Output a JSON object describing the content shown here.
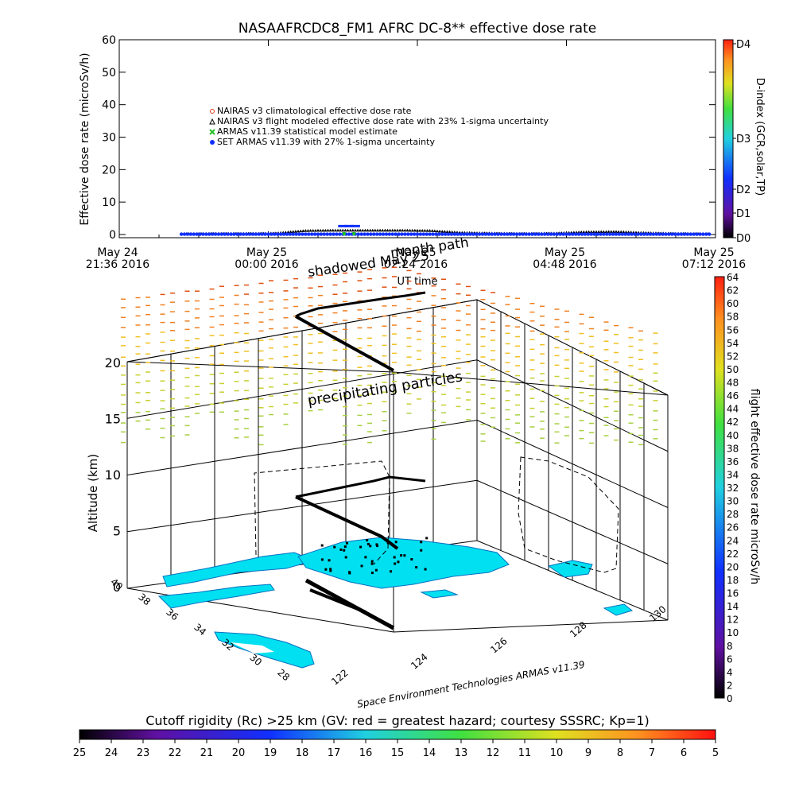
{
  "chart_data": [
    {
      "type": "line",
      "title": "NASAAFRCDC8_FM1 AFRC DC-8** effective dose rate",
      "ylabel": "Effective dose rate (microSv/h)",
      "xlabel": "UT time",
      "ylim": [
        0,
        60
      ],
      "y_ticks": [
        "0",
        "10",
        "20",
        "30",
        "40",
        "50",
        "60"
      ],
      "x_ticks": [
        {
          "line1": "May 24",
          "line2": "21:36 2016"
        },
        {
          "line1": "May 25",
          "line2": "00:00 2016"
        },
        {
          "line1": "May 25",
          "line2": "02:24 2016"
        },
        {
          "line1": "May 25",
          "line2": "04:48 2016"
        },
        {
          "line1": "May 25",
          "line2": "07:12 2016"
        }
      ],
      "legend": [
        {
          "label": "NAIRAS v3 climatological effective dose rate",
          "color": "#e04020"
        },
        {
          "label": "NAIRAS v3 flight modeled effective dose rate with 23% 1-sigma uncertainty",
          "color": "#000000"
        },
        {
          "label": "ARMAS v11.39 statistical model estimate",
          "color": "#20c020"
        },
        {
          "label": "SET ARMAS v11.39 with 27% 1-sigma uncertainty",
          "color": "#1030ff"
        }
      ],
      "series": [
        {
          "name": "NAIRAS v3 flight modeled effective dose rate with 23% 1-sigma uncertainty",
          "x_hours": [
            1.0,
            1.5,
            2.0,
            2.5,
            3.0,
            3.5,
            4.0,
            4.5,
            5.0,
            5.5,
            6.0,
            6.5,
            7.0,
            7.5,
            8.0,
            8.5,
            9.0,
            9.5
          ],
          "values": [
            0.2,
            0.3,
            0.3,
            0.4,
            1.2,
            1.3,
            1.3,
            1.3,
            1.2,
            0.6,
            0.4,
            0.3,
            0.4,
            0.8,
            0.9,
            0.5,
            0.3,
            0.2
          ]
        },
        {
          "name": "SET ARMAS v11.39 with 27% 1-sigma uncertainty",
          "x_hours": [
            1.0,
            2.0,
            3.0,
            4.0,
            5.0,
            6.0,
            7.0,
            8.0,
            9.0,
            9.5
          ],
          "values": [
            0.1,
            0.1,
            0.2,
            0.2,
            0.2,
            0.1,
            0.1,
            0.1,
            0.1,
            0.1
          ]
        },
        {
          "name": "ARMAS v11.39 statistical model estimate",
          "x_hours": [
            3.6,
            3.7,
            3.8
          ],
          "values": [
            2.6,
            2.6,
            2.6
          ]
        }
      ],
      "d_index_axis": {
        "label": "D-index (GCR,solar,TP)",
        "ticks": [
          "D0",
          "D1",
          "D2",
          "D3",
          "D4"
        ]
      }
    },
    {
      "type": "scatter",
      "annotations": [
        "shadowed  May 25",
        "month path",
        "precipitating particles"
      ],
      "zlabel": "Altitude (km)",
      "z_ticks": [
        "0",
        "5",
        "10",
        "15",
        "20"
      ],
      "lat_ticks": [
        "40",
        "38",
        "36",
        "34",
        "32",
        "30",
        "28"
      ],
      "lon_ticks": [
        "122",
        "124",
        "126",
        "128",
        "130"
      ],
      "credit": "Space Environment Technologies ARMAS v11.39",
      "dose_colorbar": {
        "label": "flight effective dose rate microSv/h",
        "ticks": [
          "0",
          "2",
          "4",
          "6",
          "8",
          "10",
          "12",
          "14",
          "16",
          "18",
          "20",
          "22",
          "24",
          "26",
          "28",
          "30",
          "32",
          "34",
          "36",
          "38",
          "40",
          "42",
          "44",
          "46",
          "48",
          "50",
          "52",
          "54",
          "56",
          "58",
          "60",
          "62",
          "64"
        ]
      }
    }
  ],
  "cutoff_bar": {
    "title": "Cutoff rigidity (Rc) >25 km (GV: red = greatest hazard; courtesy SSSRC; Kp=1)",
    "ticks": [
      "25",
      "24",
      "23",
      "22",
      "21",
      "20",
      "19",
      "18",
      "17",
      "16",
      "15",
      "14",
      "13",
      "12",
      "11",
      "10",
      "9",
      "8",
      "7",
      "6",
      "5"
    ]
  }
}
